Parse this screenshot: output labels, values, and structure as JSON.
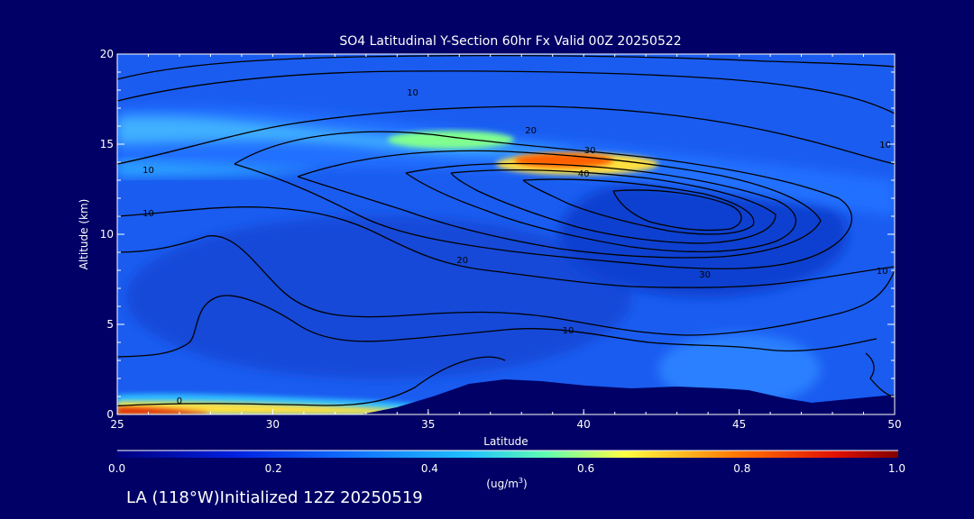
{
  "chart_data": {
    "type": "heatmap",
    "title": "SO4 Latitudinal Y-Section 60hr  Fx Valid 00Z 20250522",
    "xlabel": "Latitude",
    "ylabel": "Altitude (km)",
    "xlim": [
      25,
      50
    ],
    "ylim": [
      0,
      20
    ],
    "x_ticks": [
      "25",
      "30",
      "35",
      "40",
      "45",
      "50"
    ],
    "y_ticks": [
      "0",
      "5",
      "10",
      "15",
      "20"
    ],
    "colorbar": {
      "label_main": "(ug/m",
      "label_sup": "3",
      "label_end": ")",
      "range": [
        0,
        1
      ],
      "ticks": [
        "0.0",
        "0.2",
        "0.4",
        "0.6",
        "0.8",
        "1.0"
      ]
    },
    "contour_labels": [
      {
        "text": "0",
        "lat": 27.0,
        "alt": 0.6
      },
      {
        "text": "10",
        "lat": 26.0,
        "alt": 13.4
      },
      {
        "text": "10",
        "lat": 26.0,
        "alt": 11.0
      },
      {
        "text": "10",
        "lat": 34.5,
        "alt": 17.7
      },
      {
        "text": "20",
        "lat": 38.3,
        "alt": 15.6
      },
      {
        "text": "30",
        "lat": 40.2,
        "alt": 14.5
      },
      {
        "text": "40",
        "lat": 40.0,
        "alt": 13.2
      },
      {
        "text": "20",
        "lat": 36.1,
        "alt": 8.4
      },
      {
        "text": "30",
        "lat": 43.9,
        "alt": 7.6
      },
      {
        "text": "10",
        "lat": 39.5,
        "alt": 4.5
      },
      {
        "text": "10",
        "lat": 49.6,
        "alt": 7.8
      },
      {
        "text": "10",
        "lat": 49.7,
        "alt": 14.8
      }
    ],
    "terrain_note": "",
    "notes": "Sulfate concentration cross-section with black contours of an overlaid field"
  },
  "footer": {
    "text": "LA (118°W)Initialized 12Z 20250519"
  },
  "colors": {
    "background": "#000066",
    "low": "#0020c8",
    "mid": "#2b8cff",
    "high": "#ffd000",
    "max": "#c80000"
  }
}
